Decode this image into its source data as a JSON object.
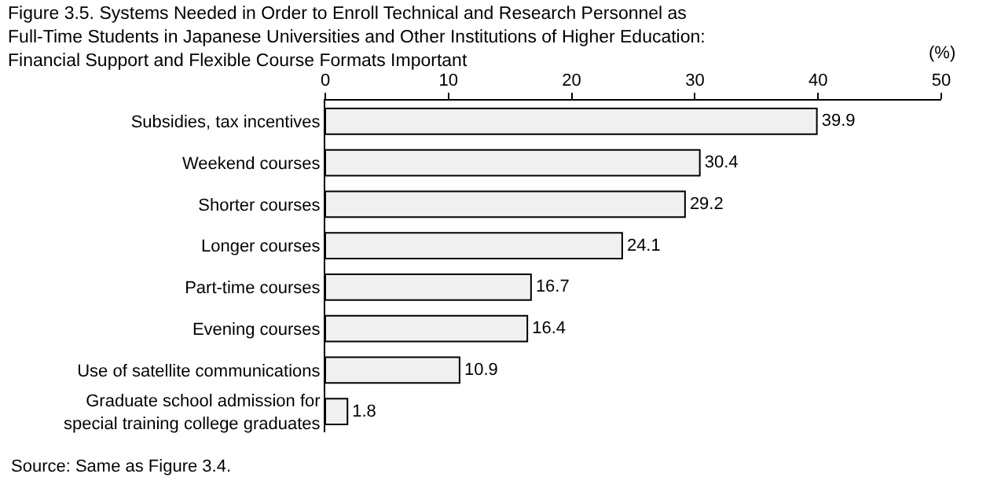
{
  "chart_data": {
    "type": "bar",
    "orientation": "horizontal",
    "title": "Figure 3.5. Systems Needed in Order to Enroll Technical and Research Personnel as\nFull-Time Students in Japanese Universities and Other Institutions of Higher Education:\nFinancial Support and Flexible Course Formats Important",
    "xlabel": "(%)",
    "categories": [
      "Subsidies, tax incentives",
      "Weekend courses",
      "Shorter courses",
      "Longer courses",
      "Part-time courses",
      "Evening courses",
      "Use of satellite communications",
      "Graduate school admission for\nspecial training college graduates"
    ],
    "values": [
      39.9,
      30.4,
      29.2,
      24.1,
      16.7,
      16.4,
      10.9,
      1.8
    ],
    "color": "#f0f0f0",
    "xlim": [
      0,
      50
    ],
    "xticks": [
      0,
      10,
      20,
      30,
      40,
      50
    ],
    "data_labels": true,
    "grid": false,
    "legend": false,
    "annotations": [
      "Source: Same as Figure 3.4."
    ]
  }
}
